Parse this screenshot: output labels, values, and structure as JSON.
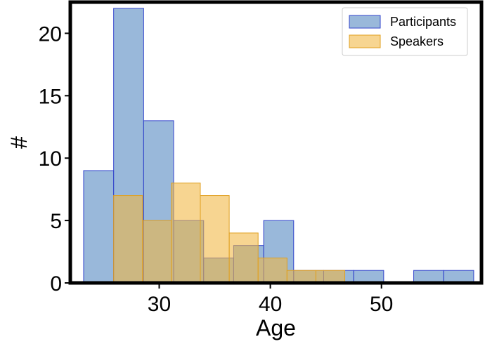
{
  "chart_data": {
    "type": "bar",
    "xlabel": "Age",
    "ylabel": "#",
    "xlim": [
      22,
      59
    ],
    "ylim": [
      0,
      22.5
    ],
    "xticks": [
      30,
      40,
      50
    ],
    "yticks": [
      0,
      5,
      10,
      15,
      20
    ],
    "grid": false,
    "legend_position": "top-right",
    "series": [
      {
        "name": "Participants",
        "color": "#5b8cc4",
        "edge_color": "#3344cc",
        "opacity": 0.62,
        "bins": [
          {
            "x0": 23.2,
            "x1": 25.9,
            "value": 9
          },
          {
            "x0": 25.9,
            "x1": 28.6,
            "value": 22
          },
          {
            "x0": 28.6,
            "x1": 31.3,
            "value": 13
          },
          {
            "x0": 31.3,
            "x1": 34.0,
            "value": 5
          },
          {
            "x0": 34.0,
            "x1": 36.7,
            "value": 2
          },
          {
            "x0": 36.7,
            "x1": 39.4,
            "value": 3
          },
          {
            "x0": 39.4,
            "x1": 42.1,
            "value": 5
          },
          {
            "x0": 42.1,
            "x1": 44.8,
            "value": 1
          },
          {
            "x0": 44.8,
            "x1": 47.5,
            "value": 1
          },
          {
            "x0": 47.5,
            "x1": 50.2,
            "value": 1
          },
          {
            "x0": 50.2,
            "x1": 52.9,
            "value": 0
          },
          {
            "x0": 52.9,
            "x1": 55.6,
            "value": 1
          },
          {
            "x0": 55.6,
            "x1": 58.3,
            "value": 1
          }
        ]
      },
      {
        "name": "Speakers",
        "color": "#f2b742",
        "edge_color": "#e0a020",
        "opacity": 0.58,
        "bins": [
          {
            "x0": 25.9,
            "x1": 28.5,
            "value": 7
          },
          {
            "x0": 28.5,
            "x1": 31.1,
            "value": 5
          },
          {
            "x0": 31.1,
            "x1": 33.7,
            "value": 8
          },
          {
            "x0": 33.7,
            "x1": 36.3,
            "value": 7
          },
          {
            "x0": 36.3,
            "x1": 38.9,
            "value": 4
          },
          {
            "x0": 38.9,
            "x1": 41.5,
            "value": 2
          },
          {
            "x0": 41.5,
            "x1": 44.1,
            "value": 1
          },
          {
            "x0": 44.1,
            "x1": 46.7,
            "value": 1
          }
        ]
      }
    ]
  }
}
